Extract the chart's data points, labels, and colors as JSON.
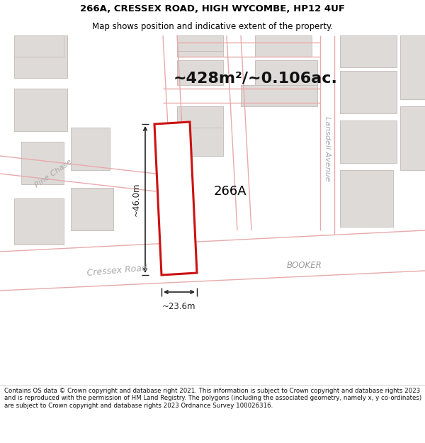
{
  "title_line1": "266A, CRESSEX ROAD, HIGH WYCOMBE, HP12 4UF",
  "title_line2": "Map shows position and indicative extent of the property.",
  "area_text": "~428m²/~0.106ac.",
  "label_266A": "266A",
  "label_booker": "BOOKER",
  "label_pine_chase": "Pine Chase",
  "label_cressex_road": "Cressex Road",
  "label_lansdell_avenue": "Lansdell Avenue",
  "dim_width": "~23.6m",
  "dim_height": "~46.0m",
  "footer_text": "Contains OS data © Crown copyright and database right 2021. This information is subject to Crown copyright and database rights 2023 and is reproduced with the permission of HM Land Registry. The polygons (including the associated geometry, namely x, y co-ordinates) are subject to Crown copyright and database rights 2023 Ordnance Survey 100026316.",
  "map_bg": "#f0eeee",
  "road_fill": "#ffffff",
  "road_line": "#e8aaaa",
  "building_fill": "#dedad8",
  "building_edge": "#c8c0bc",
  "prop_fill": "#ffffff",
  "prop_edge": "#cc1111",
  "dim_color": "#222222",
  "title_color": "#000000",
  "footer_color": "#111111",
  "area_color": "#111111"
}
